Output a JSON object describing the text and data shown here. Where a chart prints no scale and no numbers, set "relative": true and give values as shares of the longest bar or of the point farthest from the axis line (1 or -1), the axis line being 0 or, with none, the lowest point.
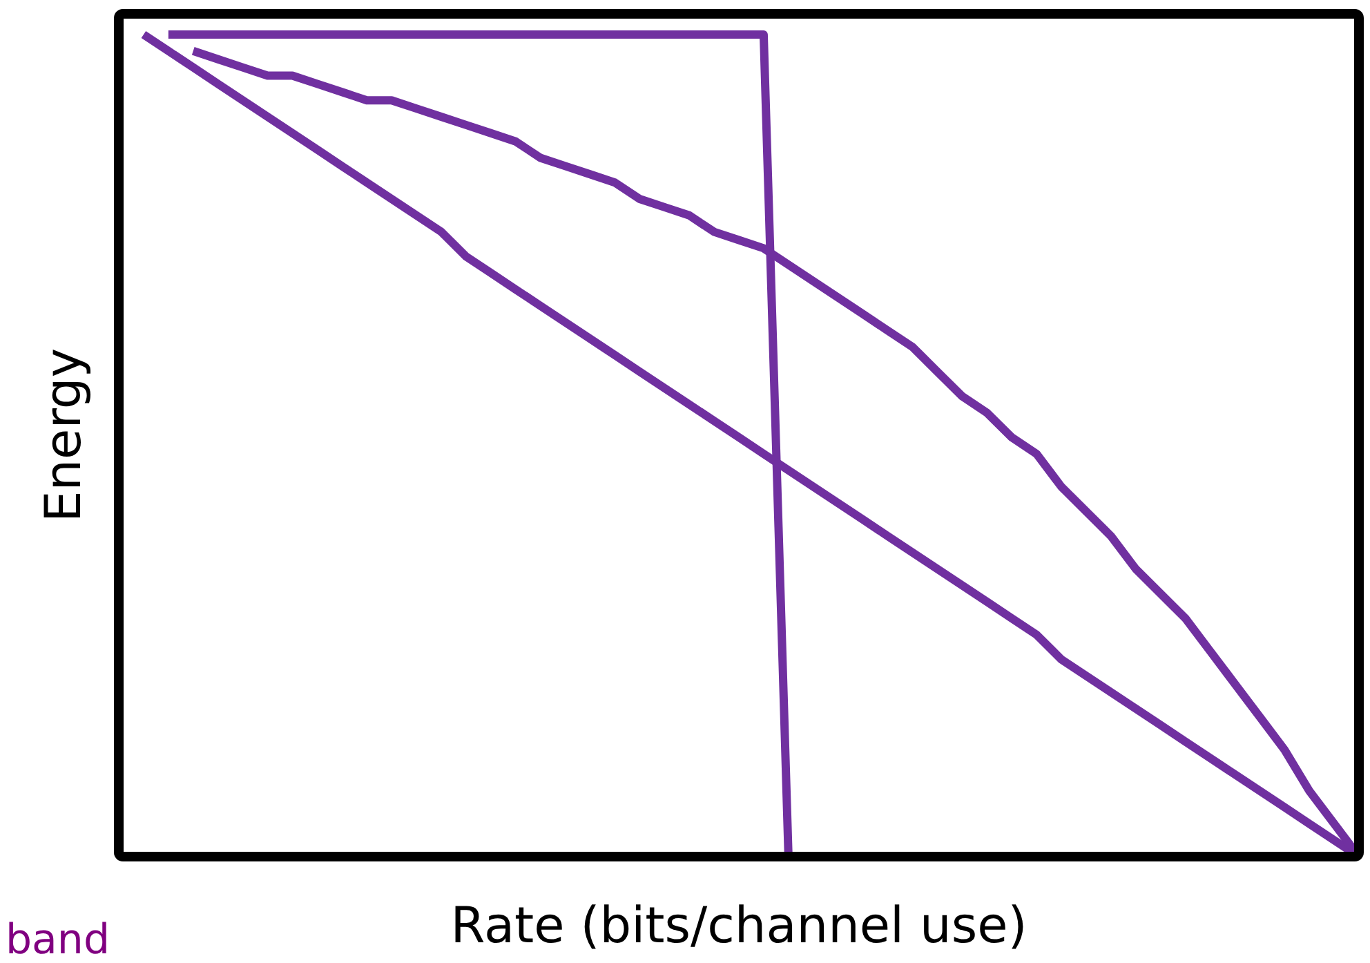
{
  "chart_data": {
    "type": "line",
    "relative": true,
    "xlabel": "Rate (bits/channel use)",
    "ylabel": "Energy",
    "marker": "none",
    "line_style": "solid",
    "annotations": [
      "band"
    ],
    "categories": [
      null,
      null,
      null,
      null,
      null,
      null,
      null,
      null,
      null,
      null,
      null,
      null,
      null,
      null,
      null,
      null,
      null,
      null,
      null,
      null,
      null,
      null,
      null,
      null,
      null,
      null,
      null,
      null,
      null,
      null,
      null,
      null,
      null,
      null,
      null,
      null,
      null,
      null,
      null,
      null,
      null,
      null,
      null,
      null,
      null,
      null,
      null,
      null,
      null,
      null
    ],
    "series": [
      {
        "color": "#7030a0",
        "values": [
          null,
          1,
          1,
          1,
          1,
          1,
          1,
          1,
          1,
          1,
          1,
          1,
          1,
          1,
          1,
          1,
          1,
          1,
          1,
          1,
          1,
          1,
          1,
          1,
          1,
          1,
          0,
          null,
          null,
          null,
          null,
          null,
          null,
          null,
          null,
          null,
          null,
          null,
          null,
          null,
          null,
          null,
          null,
          null,
          null,
          null,
          null,
          null,
          null,
          null
        ]
      },
      {
        "color": "#7030a0",
        "values": [
          1,
          0.98,
          0.96,
          0.94,
          0.92,
          0.9,
          0.88,
          0.86,
          0.84,
          0.82,
          0.8,
          0.78,
          0.76,
          0.73,
          0.71,
          0.69,
          0.67,
          0.65,
          0.63,
          0.61,
          0.59,
          0.57,
          0.55,
          0.53,
          0.51,
          0.49,
          0.47,
          0.45,
          0.43,
          0.41,
          0.39,
          0.37,
          0.35,
          0.33,
          0.31,
          0.29,
          0.27,
          0.24,
          0.22,
          0.2,
          0.18,
          0.16,
          0.14,
          0.12,
          0.1,
          0.08,
          0.06,
          0.04,
          0.02,
          0
        ]
      },
      {
        "color": "#7030a0",
        "values": [
          null,
          null,
          0.98,
          0.97,
          0.96,
          0.95,
          0.95,
          0.94,
          0.93,
          0.92,
          0.92,
          0.91,
          0.9,
          0.89,
          0.88,
          0.87,
          0.85,
          0.84,
          0.83,
          0.82,
          0.8,
          0.79,
          0.78,
          0.76,
          0.75,
          0.74,
          0.72,
          0.7,
          0.68,
          0.66,
          0.64,
          0.62,
          0.59,
          0.56,
          0.54,
          0.51,
          0.49,
          0.45,
          0.42,
          0.39,
          0.35,
          0.32,
          0.29,
          0.25,
          0.21,
          0.17,
          0.13,
          0.08,
          0.04,
          0
        ]
      }
    ]
  }
}
